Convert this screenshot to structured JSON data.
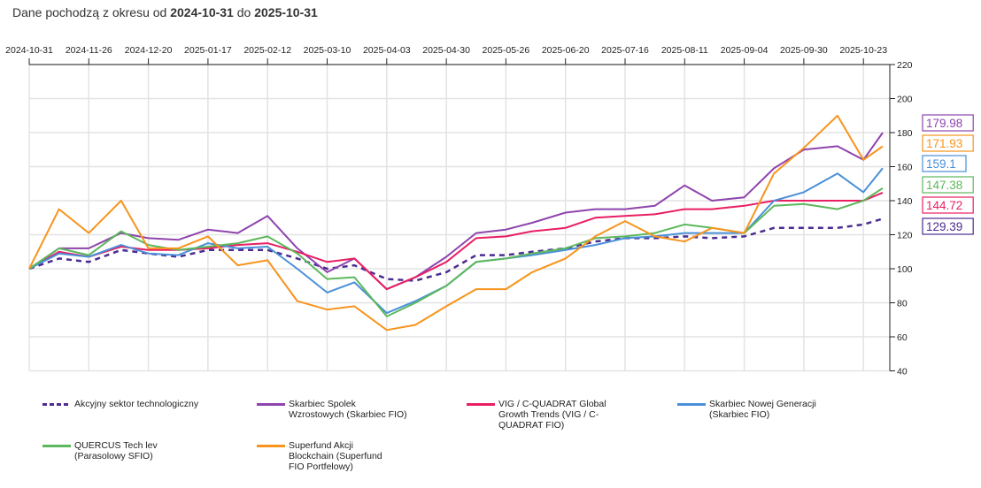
{
  "header": {
    "prefix": "Dane pochodzą z okresu od",
    "from": "2024-10-31",
    "mid": "do",
    "to": "2025-10-31"
  },
  "chart_data": {
    "type": "line",
    "xlabel": "",
    "ylabel": "",
    "ylim": [
      40,
      220
    ],
    "yticks": [
      40,
      60,
      80,
      100,
      120,
      140,
      160,
      180,
      200,
      220
    ],
    "xticks": [
      "2024-10-31",
      "2024-11-26",
      "2024-12-20",
      "2025-01-17",
      "2025-02-12",
      "2025-03-10",
      "2025-04-03",
      "2025-04-30",
      "2025-05-26",
      "2025-06-20",
      "2025-07-16",
      "2025-08-11",
      "2025-09-04",
      "2025-09-30",
      "2025-10-23"
    ],
    "grid": true,
    "legend": "bottom",
    "x": [
      "2024-10-31",
      "2024-11-13",
      "2024-11-26",
      "2024-12-09",
      "2024-12-20",
      "2025-01-03",
      "2025-01-17",
      "2025-01-30",
      "2025-02-12",
      "2025-02-25",
      "2025-03-10",
      "2025-03-21",
      "2025-04-03",
      "2025-04-16",
      "2025-04-30",
      "2025-05-13",
      "2025-05-26",
      "2025-06-06",
      "2025-06-20",
      "2025-07-03",
      "2025-07-16",
      "2025-07-29",
      "2025-08-11",
      "2025-08-22",
      "2025-09-04",
      "2025-09-17",
      "2025-09-30",
      "2025-10-13",
      "2025-10-23",
      "2025-10-31"
    ],
    "series": [
      {
        "name": "Akcyjny sektor technologiczny",
        "color": "#4b2c91",
        "dashed": true,
        "last": "129.39",
        "values": [
          100,
          106,
          104,
          111,
          109,
          107,
          111,
          111,
          111,
          106,
          100,
          102,
          94,
          93,
          98,
          108,
          108,
          110,
          112,
          116,
          118,
          118,
          119,
          118,
          119,
          124,
          124,
          124,
          126,
          129.39
        ]
      },
      {
        "name": "Skarbiec Spolek Wzrostowych (Skarbiec FIO)",
        "color": "#8e44ad",
        "last": "179.98",
        "values": [
          100,
          112,
          112,
          121,
          118,
          117,
          123,
          121,
          131,
          112,
          98,
          106,
          88,
          95,
          107,
          121,
          123,
          127,
          133,
          135,
          135,
          137,
          149,
          140,
          142,
          159,
          170,
          172,
          164,
          179.98
        ]
      },
      {
        "name": "VIG / C-QUADRAT Global Growth Trends (VIG / C-QUADRAT FIO)",
        "color": "#e91e63",
        "last": "144.72",
        "values": [
          100,
          110,
          107,
          113,
          111,
          111,
          112,
          114,
          115,
          110,
          104,
          106,
          88,
          95,
          104,
          118,
          119,
          122,
          124,
          130,
          131,
          132,
          135,
          135,
          137,
          140,
          140,
          140,
          140,
          144.72
        ]
      },
      {
        "name": "Skarbiec Nowej Generacji (Skarbiec FIO)",
        "color": "#4a90d9",
        "last": "159.1",
        "values": [
          100,
          109,
          107,
          114,
          109,
          108,
          115,
          112,
          113,
          100,
          86,
          92,
          74,
          81,
          90,
          104,
          106,
          108,
          111,
          114,
          118,
          119,
          121,
          121,
          121,
          140,
          145,
          156,
          145,
          159.1
        ]
      },
      {
        "name": "QUERCUS Tech lev (Parasolowy SFIO)",
        "color": "#5cb85c",
        "last": "147.38",
        "values": [
          100,
          112,
          108,
          122,
          114,
          111,
          113,
          115,
          119,
          109,
          94,
          95,
          72,
          80,
          90,
          104,
          106,
          109,
          112,
          118,
          119,
          121,
          126,
          124,
          121,
          137,
          138,
          135,
          140,
          147.38
        ]
      },
      {
        "name": "Superfund Akcji Blockchain (Superfund FIO Portfelowy)",
        "color": "#f7941d",
        "last": "171.93",
        "values": [
          100,
          135,
          121,
          140,
          112,
          112,
          119,
          102,
          105,
          81,
          76,
          78,
          64,
          67,
          78,
          88,
          88,
          98,
          106,
          119,
          128,
          119,
          116,
          124,
          121,
          156,
          171,
          190,
          164,
          171.93
        ]
      }
    ]
  }
}
